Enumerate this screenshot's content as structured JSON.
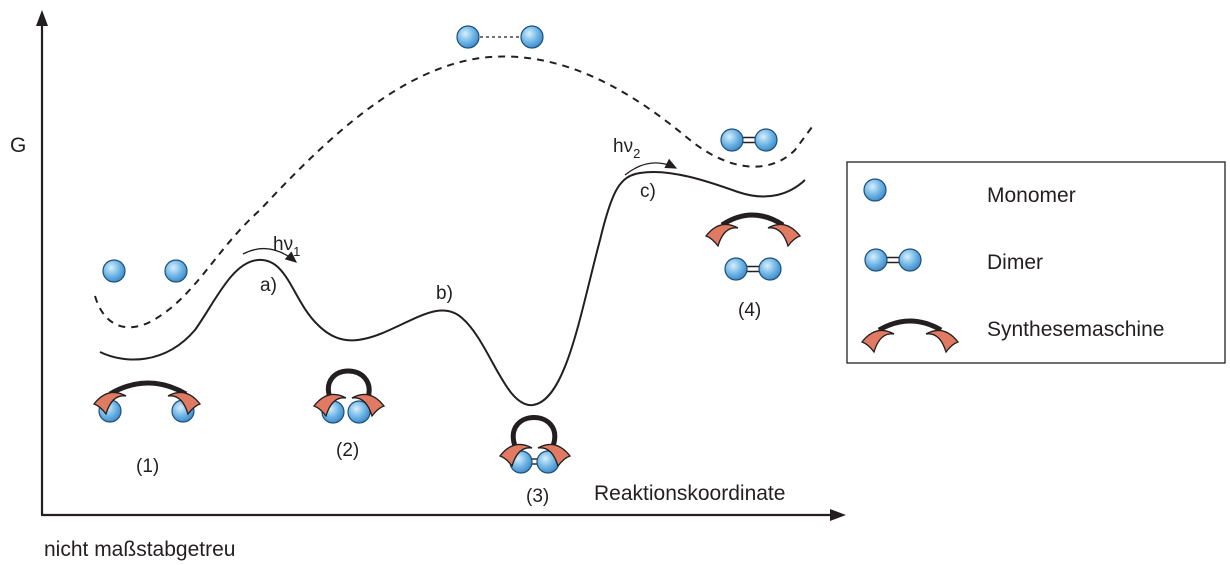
{
  "diagram": {
    "y_axis_label": "G",
    "x_axis_label": "Reaktionskoordinate",
    "footnote": "nicht maßstabgetreu",
    "states": [
      {
        "label": "(1)"
      },
      {
        "label": "(2)"
      },
      {
        "label": "(3)"
      },
      {
        "label": "(4)"
      }
    ],
    "steps": [
      {
        "label": "a)"
      },
      {
        "label": "b)"
      },
      {
        "label": "c)"
      }
    ],
    "photons": [
      {
        "base": "hν",
        "sub": "1"
      },
      {
        "base": "hν",
        "sub": "2"
      }
    ],
    "legend": {
      "items": [
        {
          "label": "Monomer",
          "icon": "monomer-icon"
        },
        {
          "label": "Dimer",
          "icon": "dimer-icon"
        },
        {
          "label": "Synthesemaschine",
          "icon": "machine-icon"
        }
      ]
    },
    "colors": {
      "sphere": "#6fb6e6",
      "sphere_edge": "#1d4f7c",
      "cup": "#e07a62",
      "line": "#231f20"
    }
  }
}
